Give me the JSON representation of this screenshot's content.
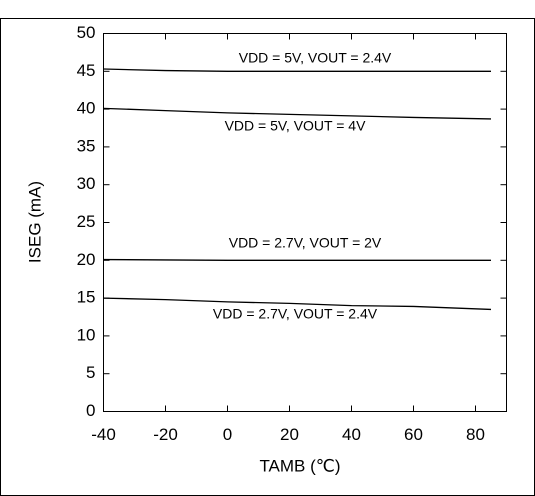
{
  "chart_data": {
    "type": "line",
    "xlabel": "TAMB (℃)",
    "ylabel": "ISEG (mA)",
    "x": [
      -40,
      -20,
      0,
      20,
      40,
      60,
      85
    ],
    "series": [
      {
        "name": "VDD = 5V, VOUT = 2.4V",
        "color": "#000000",
        "values": [
          45.3,
          45.1,
          45.0,
          45.0,
          45.0,
          45.0,
          45.0
        ]
      },
      {
        "name": "VDD = 5V, VOUT = 4V",
        "color": "#000000",
        "values": [
          40.1,
          39.8,
          39.5,
          39.3,
          39.1,
          38.9,
          38.7
        ]
      },
      {
        "name": "VDD = 2.7V, VOUT = 2V",
        "color": "#000000",
        "values": [
          20.1,
          20.05,
          20.0,
          20.0,
          20.0,
          20.0,
          20.0
        ]
      },
      {
        "name": "VDD = 2.7V, VOUT = 2.4V",
        "color": "#000000",
        "values": [
          15.0,
          14.8,
          14.5,
          14.3,
          14.0,
          13.9,
          13.5
        ]
      }
    ],
    "xlim": [
      -40,
      90
    ],
    "ylim": [
      0,
      50
    ],
    "xticks": [
      -40,
      -20,
      0,
      20,
      40,
      60,
      80
    ],
    "yticks": [
      0,
      5,
      10,
      15,
      20,
      25,
      30,
      35,
      40,
      45,
      50
    ]
  }
}
